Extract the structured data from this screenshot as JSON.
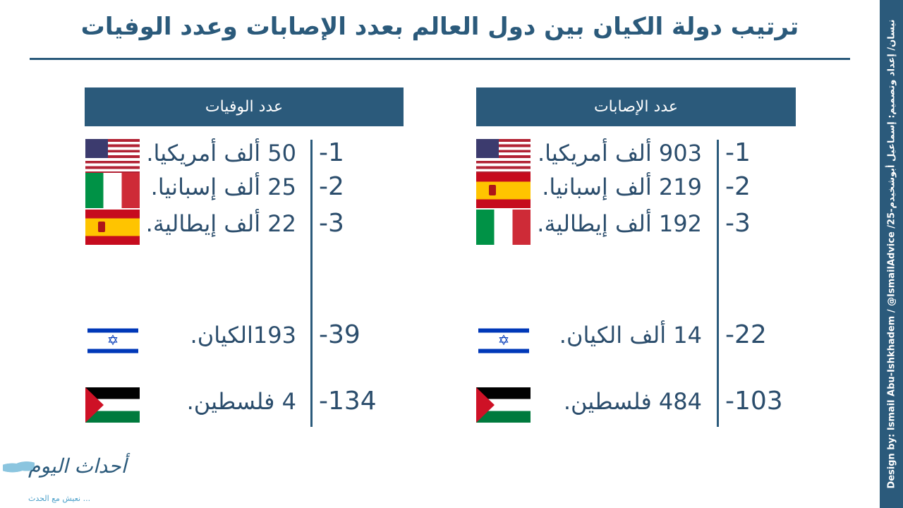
{
  "title": "ترتيب دولة الكيان بين دول العالم بعدد الإصابات وعدد الوفيات",
  "credit": "Design by: Ismail Abu-Ishkhadem / @IsmailAdvice /25-نيسان/ إعداد وتصميم: إسماعيل أبوشخيدم",
  "logo": {
    "name": "أحداث اليوم",
    "tagline": "... نعيش مع الحدث"
  },
  "colors": {
    "accent": "#2b5a7b"
  },
  "cases": {
    "header": "عدد الإصابات",
    "rows": [
      {
        "rank": "-1",
        "text": "903 ألف أمريكيا.",
        "flag": "us-flag"
      },
      {
        "rank": "-2",
        "text": "219 ألف إسبانيا.",
        "flag": "spain-flag"
      },
      {
        "rank": "-3",
        "text": "192 ألف إيطالية.",
        "flag": "italy-flag"
      },
      {
        "rank": "-22",
        "text": "14 ألف الكيان.",
        "flag": "israel-flag"
      },
      {
        "rank": "-103",
        "text": "484 فلسطين.",
        "flag": "palestine-flag"
      }
    ]
  },
  "deaths": {
    "header": "عدد الوفيات",
    "rows": [
      {
        "rank": "-1",
        "text": "50 ألف أمريكيا.",
        "flag": "us-flag"
      },
      {
        "rank": "-2",
        "text": "25 ألف إسبانيا.",
        "flag": "italy-flag"
      },
      {
        "rank": "-3",
        "text": "22 ألف إيطالية.",
        "flag": "spain-flag"
      },
      {
        "rank": "-39",
        "text": "193الكيان.",
        "flag": "israel-flag"
      },
      {
        "rank": "-134",
        "text": "4 فلسطين.",
        "flag": "palestine-flag"
      }
    ]
  }
}
